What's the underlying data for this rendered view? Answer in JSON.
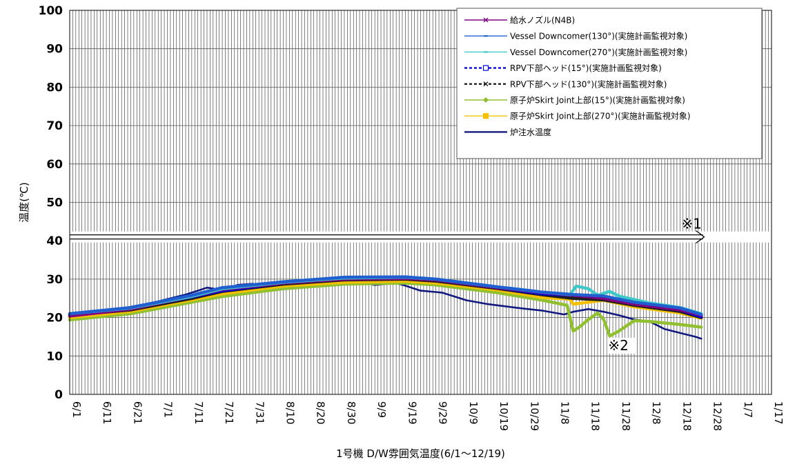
{
  "chart_data": {
    "type": "line",
    "title": "",
    "xlabel": "1号機 D/W雰囲気温度(6/1〜12/19)",
    "ylabel": "温度(℃)",
    "ylim": [
      0,
      100
    ],
    "yticks": [
      0,
      10,
      20,
      30,
      40,
      50,
      60,
      70,
      80,
      90,
      100
    ],
    "x_range_days": [
      0,
      230
    ],
    "x_tick_labels": [
      "6/1",
      "6/11",
      "6/21",
      "7/1",
      "7/11",
      "7/21",
      "7/31",
      "8/10",
      "8/20",
      "8/30",
      "9/9",
      "9/19",
      "9/29",
      "10/9",
      "10/19",
      "10/29",
      "11/8",
      "11/18",
      "11/28",
      "12/8",
      "12/18",
      "12/28",
      "1/7",
      "1/17"
    ],
    "grid": "vertical daily lines, horizontal every 10",
    "legend_position": "top-right",
    "series": [
      {
        "name": "給水ノズル(N4B)",
        "color": "#800080",
        "marker": "asterisk",
        "points": [
          [
            0,
            20.4
          ],
          [
            20,
            22.2
          ],
          [
            40,
            25.5
          ],
          [
            50,
            27.3
          ],
          [
            70,
            29.0
          ],
          [
            90,
            30.0
          ],
          [
            110,
            30.2
          ],
          [
            120,
            29.8
          ],
          [
            140,
            27.8
          ],
          [
            155,
            26.5
          ],
          [
            165,
            25.8
          ],
          [
            175,
            25.0
          ],
          [
            185,
            23.5
          ],
          [
            200,
            22.0
          ],
          [
            207,
            20.6
          ]
        ]
      },
      {
        "name": "Vessel Downcomer(130°)(実施計画監視対象)",
        "color": "#1f5fd0",
        "marker": "dash",
        "points": [
          [
            0,
            21.0
          ],
          [
            20,
            22.6
          ],
          [
            40,
            25.8
          ],
          [
            50,
            27.8
          ],
          [
            70,
            29.3
          ],
          [
            90,
            30.5
          ],
          [
            110,
            30.6
          ],
          [
            120,
            30.0
          ],
          [
            140,
            28.0
          ],
          [
            155,
            26.6
          ],
          [
            165,
            26.0
          ],
          [
            175,
            25.6
          ],
          [
            185,
            24.0
          ],
          [
            200,
            22.5
          ],
          [
            207,
            20.8
          ]
        ]
      },
      {
        "name": "Vessel Downcomer(270°)(実施計画監視対象)",
        "color": "#40c8c8",
        "marker": "dash",
        "points": [
          [
            0,
            21.0
          ],
          [
            20,
            22.5
          ],
          [
            40,
            25.5
          ],
          [
            50,
            27.5
          ],
          [
            70,
            29.2
          ],
          [
            90,
            30.3
          ],
          [
            110,
            30.5
          ],
          [
            120,
            30.0
          ],
          [
            140,
            28.0
          ],
          [
            155,
            26.6
          ],
          [
            164,
            26.0
          ],
          [
            166,
            28.2
          ],
          [
            170,
            27.5
          ],
          [
            173,
            25.8
          ],
          [
            177,
            26.8
          ],
          [
            180,
            25.6
          ],
          [
            190,
            23.8
          ],
          [
            200,
            22.6
          ],
          [
            207,
            21.0
          ]
        ]
      },
      {
        "name": "RPV下部ヘッド(15°)(実施計画監視対象)",
        "color": "#0000e0",
        "marker": "square",
        "dashed": true,
        "points": [
          [
            0,
            20.8
          ],
          [
            20,
            22.3
          ],
          [
            40,
            25.4
          ],
          [
            50,
            27.0
          ],
          [
            70,
            29.0
          ],
          [
            90,
            30.2
          ],
          [
            110,
            30.4
          ],
          [
            120,
            29.8
          ],
          [
            140,
            27.8
          ],
          [
            155,
            26.2
          ],
          [
            165,
            25.8
          ],
          [
            175,
            25.2
          ],
          [
            185,
            23.6
          ],
          [
            200,
            22.0
          ],
          [
            207,
            20.2
          ]
        ]
      },
      {
        "name": "RPV下部ヘッド(130°)(実施計画監視対象)",
        "color": "#202020",
        "marker": "x",
        "dashed": true,
        "points": [
          [
            0,
            20.6
          ],
          [
            20,
            22.0
          ],
          [
            40,
            25.0
          ],
          [
            50,
            26.8
          ],
          [
            70,
            28.7
          ],
          [
            90,
            29.8
          ],
          [
            110,
            30.0
          ],
          [
            120,
            29.5
          ],
          [
            140,
            27.6
          ],
          [
            155,
            25.9
          ],
          [
            165,
            25.0
          ],
          [
            175,
            24.6
          ],
          [
            185,
            23.2
          ],
          [
            200,
            21.6
          ],
          [
            207,
            20.0
          ]
        ]
      },
      {
        "name": "原子炉Skirt Joint上部(15°)(実施計画監視対象)",
        "color": "#90c030",
        "marker": "diamond",
        "points": [
          [
            0,
            19.4
          ],
          [
            20,
            21.0
          ],
          [
            40,
            24.0
          ],
          [
            50,
            25.5
          ],
          [
            70,
            27.5
          ],
          [
            90,
            28.7
          ],
          [
            110,
            29.0
          ],
          [
            120,
            28.5
          ],
          [
            140,
            26.5
          ],
          [
            155,
            24.5
          ],
          [
            163,
            23.2
          ],
          [
            165,
            16.5
          ],
          [
            167,
            17.5
          ],
          [
            170,
            19.5
          ],
          [
            173,
            21.2
          ],
          [
            175,
            19.5
          ],
          [
            177,
            15.2
          ],
          [
            180,
            16.5
          ],
          [
            185,
            19.2
          ],
          [
            190,
            19.0
          ],
          [
            200,
            18.2
          ],
          [
            207,
            17.5
          ]
        ]
      },
      {
        "name": "原子炉Skirt Joint上部(270°)(実施計画監視対象)",
        "color": "#f5c000",
        "marker": "square",
        "points": [
          [
            0,
            20.0
          ],
          [
            20,
            21.6
          ],
          [
            40,
            24.6
          ],
          [
            50,
            26.2
          ],
          [
            70,
            28.2
          ],
          [
            90,
            29.2
          ],
          [
            110,
            29.5
          ],
          [
            120,
            29.0
          ],
          [
            140,
            27.2
          ],
          [
            155,
            25.2
          ],
          [
            164,
            24.8
          ],
          [
            165,
            23.5
          ],
          [
            170,
            24.0
          ],
          [
            175,
            24.5
          ],
          [
            185,
            22.8
          ],
          [
            200,
            21.2
          ],
          [
            207,
            19.8
          ]
        ]
      },
      {
        "name": "炉注水温度",
        "color": "#101880",
        "marker": "none",
        "points": [
          [
            0,
            21.0
          ],
          [
            8,
            21.5
          ],
          [
            18,
            22.5
          ],
          [
            28,
            24.0
          ],
          [
            38,
            26.0
          ],
          [
            42,
            27.0
          ],
          [
            45,
            27.8
          ],
          [
            50,
            27.2
          ],
          [
            55,
            28.5
          ],
          [
            60,
            28.8
          ],
          [
            63,
            27.0
          ],
          [
            67,
            28.5
          ],
          [
            72,
            29.0
          ],
          [
            80,
            29.5
          ],
          [
            90,
            30.2
          ],
          [
            95,
            29.2
          ],
          [
            100,
            28.5
          ],
          [
            107,
            29.0
          ],
          [
            110,
            28.3
          ],
          [
            115,
            27.0
          ],
          [
            122,
            26.5
          ],
          [
            130,
            24.5
          ],
          [
            137,
            23.5
          ],
          [
            147,
            22.5
          ],
          [
            155,
            21.8
          ],
          [
            162,
            20.8
          ],
          [
            165,
            21.5
          ],
          [
            170,
            22.2
          ],
          [
            175,
            21.5
          ],
          [
            180,
            20.6
          ],
          [
            185,
            19.5
          ],
          [
            190,
            19.0
          ],
          [
            195,
            17.0
          ],
          [
            200,
            16.0
          ],
          [
            205,
            15.0
          ],
          [
            207,
            14.5
          ]
        ]
      }
    ]
  },
  "annotations": {
    "arrow_label": "※1",
    "arrow_y_value": 41,
    "note_label": "※2"
  }
}
